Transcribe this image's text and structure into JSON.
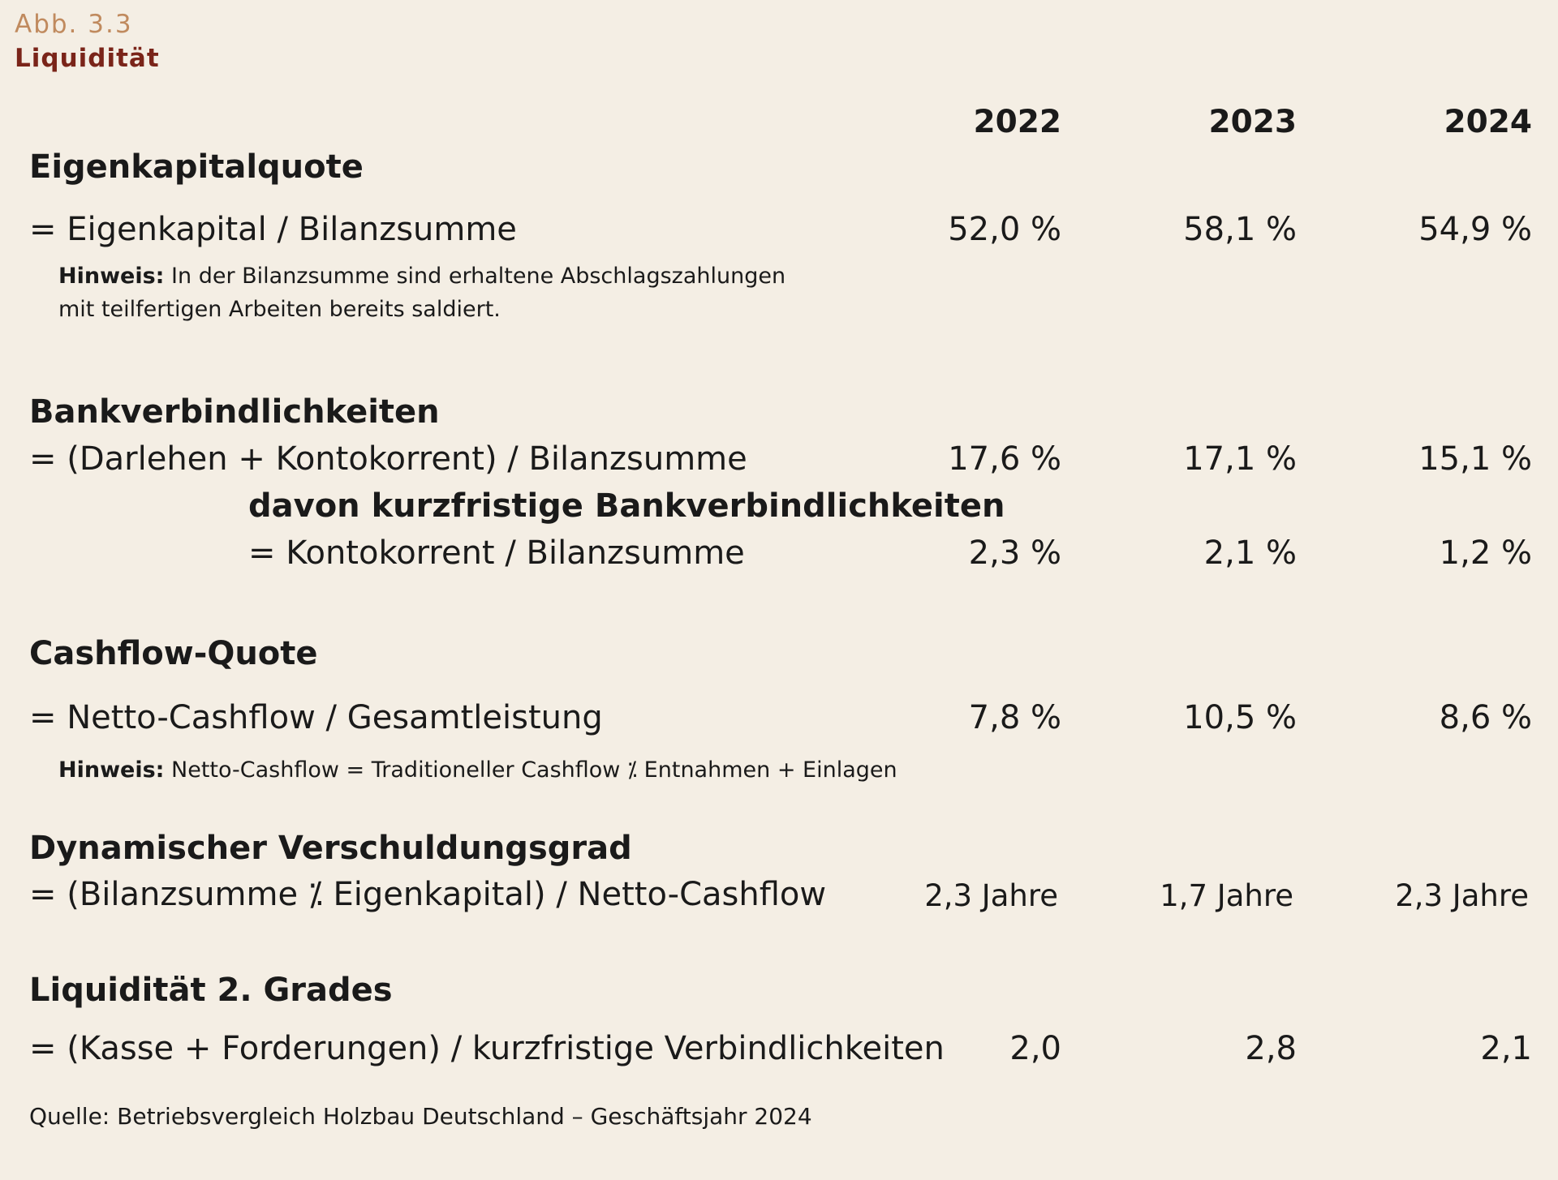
{
  "figure": {
    "number": "Abb. 3.3",
    "title": "Liquidität"
  },
  "years": [
    "2022",
    "2023",
    "2024"
  ],
  "sections": {
    "eigenkapital": {
      "heading": "Eigenkapitalquote",
      "formula": "= Eigenkapital / Bilanzsumme",
      "values": [
        "52,0 %",
        "58,1 %",
        "54,9 %"
      ],
      "note_label": "Hinweis:",
      "note_line1": " In der Bilanzsumme sind erhaltene Abschlagszahlungen",
      "note_line2": "mit teilfertigen Arbeiten bereits saldiert."
    },
    "bank": {
      "heading": "Bankverbindlichkeiten",
      "formula": "= (Darlehen + Kontokorrent) / Bilanzsumme",
      "values": [
        "17,6 %",
        "17,1 %",
        "15,1 %"
      ],
      "sub_heading": "davon kurzfristige Bankverbindlichkeiten",
      "sub_formula": "= Kontokorrent / Bilanzsumme",
      "sub_values": [
        "2,3 %",
        "2,1 %",
        "1,2 %"
      ]
    },
    "cashflow": {
      "heading": "Cashflow-Quote",
      "formula": "= Netto-Cashflow / Gesamtleistung",
      "values": [
        "7,8 %",
        "10,5 %",
        "8,6 %"
      ],
      "note_label": "Hinweis:",
      "note_text": " Netto-Cashflow = Traditioneller Cashflow ⁒ Entnahmen + Einlagen"
    },
    "verschuldung": {
      "heading": "Dynamischer Verschuldungsgrad",
      "formula": "= (Bilanzsumme ⁒ Eigenkapital) / Netto-Cashflow",
      "values": [
        "2,3 Jahre",
        "1,7 Jahre",
        "2,3 Jahre"
      ]
    },
    "liquiditaet": {
      "heading": "Liquidität 2. Grades",
      "formula": "= (Kasse + Forderungen) / kurzfristige Verbindlichkeiten",
      "values": [
        "2,0",
        "2,8",
        "2,1"
      ]
    }
  },
  "source": "Quelle: Betriebsvergleich Holzbau Deutschland – Geschäftsjahr 2024"
}
